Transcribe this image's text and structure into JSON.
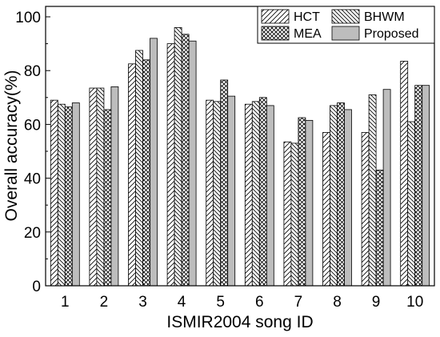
{
  "chart_data": {
    "type": "bar",
    "xlabel": "ISMIR2004 song ID",
    "ylabel": "Overall accuracy(%)",
    "ylim": [
      0,
      100
    ],
    "yticks": [
      0,
      20,
      40,
      60,
      80,
      100
    ],
    "grid": false,
    "legend_position": "top-right",
    "categories": [
      "1",
      "2",
      "3",
      "4",
      "5",
      "6",
      "7",
      "8",
      "9",
      "10"
    ],
    "series": [
      {
        "name": "HCT",
        "pattern": "hatch-forward",
        "values": [
          69,
          73.5,
          82.5,
          90,
          69,
          67.5,
          53.5,
          57,
          57,
          83.5
        ]
      },
      {
        "name": "BHWM",
        "pattern": "hatch-back",
        "values": [
          67.5,
          73.5,
          87.5,
          96,
          68.5,
          68.5,
          53,
          67,
          71,
          61
        ]
      },
      {
        "name": "MEA",
        "pattern": "crosshatch",
        "values": [
          66.5,
          65.5,
          84,
          93.5,
          76.5,
          70,
          62.5,
          68,
          43,
          74.5
        ]
      },
      {
        "name": "Proposed",
        "pattern": "solid-gray",
        "values": [
          68,
          74,
          92,
          91,
          70.5,
          67,
          61.5,
          65.5,
          73,
          74.5
        ]
      }
    ],
    "colors": {
      "stroke": "#000000",
      "proposed_fill": "#bdbdbd",
      "background": "#ffffff"
    }
  }
}
